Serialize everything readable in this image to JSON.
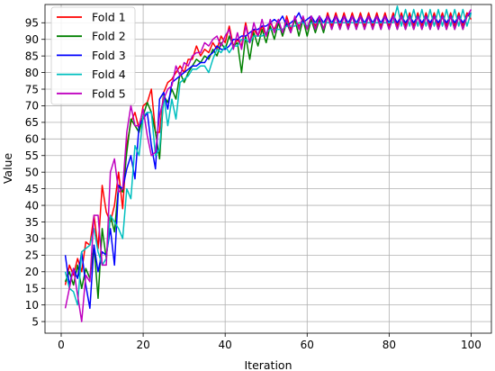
{
  "chart_data": {
    "type": "line",
    "xlabel": "Iteration",
    "ylabel": "Value",
    "xlim": [
      -3.95,
      104.95
    ],
    "ylim": [
      1.5,
      100.5
    ],
    "x_ticks": [
      0,
      20,
      40,
      60,
      80,
      100
    ],
    "y_ticks": [
      5,
      10,
      15,
      20,
      25,
      30,
      35,
      40,
      45,
      50,
      55,
      60,
      65,
      70,
      75,
      80,
      85,
      90,
      95
    ],
    "grid": true,
    "legend_position": "upper-left",
    "x": [
      1,
      2,
      3,
      4,
      5,
      6,
      7,
      8,
      9,
      10,
      11,
      12,
      13,
      14,
      15,
      16,
      17,
      18,
      19,
      20,
      21,
      22,
      23,
      24,
      25,
      26,
      27,
      28,
      29,
      30,
      31,
      32,
      33,
      34,
      35,
      36,
      37,
      38,
      39,
      40,
      41,
      42,
      43,
      44,
      45,
      46,
      47,
      48,
      49,
      50,
      51,
      52,
      53,
      54,
      55,
      56,
      57,
      58,
      59,
      60,
      61,
      62,
      63,
      64,
      65,
      66,
      67,
      68,
      69,
      70,
      71,
      72,
      73,
      74,
      75,
      76,
      77,
      78,
      79,
      80,
      81,
      82,
      83,
      84,
      85,
      86,
      87,
      88,
      89,
      90,
      91,
      92,
      93,
      94,
      95,
      96,
      97,
      98,
      99,
      100
    ],
    "series": [
      {
        "name": "Fold 1",
        "color": "#ff0000",
        "values": [
          16,
          22,
          19,
          24,
          20,
          29,
          28,
          37,
          27,
          46,
          38,
          35,
          40,
          50,
          39,
          58,
          65,
          68,
          63,
          70,
          71,
          75,
          62,
          62,
          74,
          77,
          78,
          80,
          82,
          80,
          84,
          84,
          88,
          85,
          87,
          86,
          89,
          87,
          91,
          89,
          94,
          88,
          90,
          88,
          95,
          89,
          93,
          91,
          94,
          91,
          95,
          93,
          96,
          91,
          97,
          93,
          96,
          94,
          96,
          93,
          97,
          94,
          97,
          93,
          98,
          94,
          98,
          94,
          98,
          94,
          98,
          94,
          98,
          94,
          98,
          94,
          98,
          94,
          98,
          94,
          98,
          94,
          98,
          94,
          98,
          94,
          98,
          94,
          98,
          94,
          98,
          94,
          98,
          94,
          98,
          94,
          98,
          94,
          98,
          96
        ]
      },
      {
        "name": "Fold 2",
        "color": "#008000",
        "values": [
          17,
          20,
          16,
          22,
          15,
          21,
          18,
          28,
          12,
          33,
          24,
          37,
          32,
          46,
          44,
          56,
          66,
          64,
          62,
          67,
          71,
          68,
          62,
          54,
          73,
          71,
          75,
          72,
          80,
          77,
          80,
          82,
          84,
          83,
          85,
          84,
          87,
          85,
          89,
          87,
          91,
          88,
          89,
          80,
          91,
          84,
          92,
          88,
          93,
          89,
          94,
          90,
          95,
          91,
          95,
          92,
          96,
          91,
          96,
          91,
          96,
          92,
          96,
          92,
          97,
          93,
          97,
          93,
          97,
          93,
          97,
          93,
          97,
          93,
          97,
          93,
          97,
          93,
          97,
          93,
          97,
          93,
          97,
          93,
          97,
          93,
          97,
          93,
          97,
          93,
          97,
          93,
          97,
          93,
          97,
          93,
          97,
          93,
          97,
          98
        ]
      },
      {
        "name": "Fold 3",
        "color": "#0000ff",
        "values": [
          25,
          16,
          21,
          18,
          26,
          16,
          9,
          28,
          20,
          26,
          25,
          33,
          22,
          46,
          45,
          51,
          55,
          48,
          64,
          66,
          68,
          58,
          51,
          72,
          74,
          69,
          77,
          78,
          79,
          80,
          81,
          82,
          82,
          83,
          83,
          85,
          86,
          88,
          87,
          87,
          88,
          90,
          90,
          91,
          91,
          92,
          93,
          93,
          94,
          94,
          95,
          96,
          95,
          97,
          94,
          95,
          96,
          98,
          95,
          96,
          97,
          95,
          97,
          95,
          97,
          95,
          97,
          95,
          97,
          95,
          97,
          95,
          97,
          95,
          97,
          95,
          97,
          95,
          97,
          95,
          97,
          95,
          97,
          95,
          97,
          95,
          97,
          95,
          97,
          95,
          97,
          95,
          97,
          95,
          97,
          95,
          97,
          95,
          97,
          98
        ]
      },
      {
        "name": "Fold 4",
        "color": "#00bfbf",
        "values": [
          20,
          15,
          14,
          10,
          26,
          27,
          28,
          33,
          26,
          22,
          24,
          37,
          35,
          33,
          30,
          45,
          42,
          58,
          55,
          67,
          68,
          68,
          55,
          57,
          73,
          64,
          72,
          66,
          77,
          78,
          79,
          81,
          81,
          82,
          82,
          80,
          84,
          87,
          86,
          88,
          86,
          88,
          88,
          90,
          90,
          89,
          91,
          91,
          91,
          92,
          93,
          93,
          93,
          93,
          94,
          94,
          94,
          95,
          95,
          94,
          95,
          95,
          95,
          95,
          95,
          95,
          95,
          95,
          95,
          95,
          95,
          95,
          95,
          95,
          95,
          95,
          95,
          95,
          95,
          95,
          95,
          100,
          94,
          99,
          94,
          99,
          94,
          99,
          94,
          99,
          94,
          99,
          94,
          99,
          94,
          99,
          94,
          99,
          94,
          98
        ]
      },
      {
        "name": "Fold 5",
        "color": "#bf00bf",
        "values": [
          9,
          15,
          21,
          13,
          5,
          19,
          17,
          37,
          37,
          22,
          22,
          50,
          54,
          44,
          45,
          62,
          70,
          64,
          64,
          69,
          61,
          55,
          56,
          67,
          72,
          75,
          76,
          82,
          79,
          83,
          82,
          85,
          86,
          86,
          89,
          88,
          90,
          91,
          88,
          91,
          93,
          87,
          92,
          87,
          94,
          89,
          95,
          91,
          96,
          91,
          96,
          92,
          96,
          92,
          96,
          92,
          97,
          93,
          97,
          93,
          97,
          93,
          97,
          93,
          97,
          93,
          97,
          93,
          97,
          93,
          97,
          93,
          97,
          93,
          97,
          93,
          97,
          93,
          97,
          93,
          97,
          93,
          97,
          93,
          97,
          93,
          97,
          93,
          97,
          93,
          97,
          93,
          97,
          93,
          97,
          93,
          97,
          93,
          97,
          99
        ]
      }
    ]
  }
}
